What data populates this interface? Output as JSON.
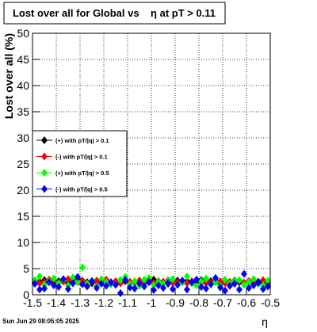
{
  "chart_data": {
    "type": "scatter",
    "title": "Lost over all for Global vs    η at pT > 0.11",
    "x_label": "η",
    "y_label": "Lost over all (%)",
    "timestamp": "Sun Jun 29 08:05:05 2025",
    "xlim": [
      -1.5,
      -0.5
    ],
    "xticks": [
      -1.5,
      -1.4,
      -1.3,
      -1.2,
      -1.1,
      -1,
      -0.9,
      -0.8,
      -0.7,
      -0.6,
      -0.5
    ],
    "ylim": [
      0,
      50
    ],
    "yticks": [
      0,
      5,
      10,
      15,
      20,
      25,
      30,
      35,
      40,
      45,
      50
    ],
    "grid": true,
    "legend_position": "left",
    "x": [
      -1.49,
      -1.47,
      -1.45,
      -1.43,
      -1.41,
      -1.39,
      -1.37,
      -1.35,
      -1.33,
      -1.31,
      -1.29,
      -1.27,
      -1.25,
      -1.23,
      -1.21,
      -1.19,
      -1.17,
      -1.15,
      -1.13,
      -1.11,
      -1.09,
      -1.07,
      -1.05,
      -1.03,
      -1.01,
      -0.99,
      -0.97,
      -0.95,
      -0.93,
      -0.91,
      -0.89,
      -0.87,
      -0.85,
      -0.83,
      -0.81,
      -0.79,
      -0.77,
      -0.75,
      -0.73,
      -0.71,
      -0.69,
      -0.67,
      -0.65,
      -0.63,
      -0.61,
      -0.59,
      -0.57,
      -0.55,
      -0.53,
      -0.51
    ],
    "series": [
      {
        "name": "(+) with pT/|q| > 0.1",
        "color": "#000000",
        "values": [
          2.3,
          2.5,
          2.8,
          2.4,
          2.1,
          2.6,
          2.9,
          2.2,
          2.5,
          3.1,
          2.7,
          2.4,
          2.2,
          2.6,
          2.3,
          2.5,
          2.1,
          2.4,
          2.8,
          2.6,
          2.3,
          2.5,
          2.7,
          2.2,
          2.4,
          2.9,
          2.6,
          2.3,
          2.1,
          2.5,
          2.7,
          2.4,
          2.6,
          2.2,
          2.5,
          2.8,
          2.3,
          2.6,
          2.4,
          2.1,
          2.5,
          2.2,
          2.7,
          2.4,
          2.3,
          2.6,
          2.2,
          2.5,
          2.4,
          2.3
        ]
      },
      {
        "name": "(-) with pT/|q| > 0.1",
        "color": "#ff0000",
        "values": [
          2.6,
          2.2,
          2.4,
          2.9,
          2.7,
          2.3,
          2.5,
          3.0,
          2.8,
          2.4,
          2.6,
          2.2,
          2.5,
          2.7,
          2.3,
          2.9,
          2.4,
          2.6,
          2.2,
          2.8,
          2.5,
          2.3,
          2.7,
          2.4,
          2.9,
          2.2,
          2.6,
          2.5,
          2.8,
          2.3,
          2.4,
          2.7,
          2.2,
          2.6,
          2.9,
          2.4,
          2.5,
          2.3,
          2.8,
          2.6,
          2.2,
          2.5,
          2.4,
          2.7,
          2.3,
          2.6,
          2.5,
          2.2,
          2.8,
          2.4
        ]
      },
      {
        "name": "(+) with pT/|q| > 0.5",
        "color": "#00ff00",
        "values": [
          2.8,
          3.5,
          1.9,
          2.6,
          3.1,
          2.2,
          2.9,
          1.8,
          3.3,
          2.5,
          5.2,
          2.1,
          2.7,
          1.6,
          3.0,
          2.4,
          2.2,
          1.9,
          2.8,
          3.4,
          2.0,
          2.6,
          1.7,
          2.9,
          3.2,
          1.8,
          2.5,
          2.1,
          2.7,
          3.0,
          1.9,
          2.4,
          3.5,
          2.2,
          1.8,
          2.6,
          3.1,
          2.0,
          2.4,
          1.7,
          2.9,
          2.2,
          2.6,
          2.8,
          1.9,
          2.4,
          3.0,
          2.1,
          1.8,
          2.7
        ]
      },
      {
        "name": "(-) with pT/|q| > 0.5",
        "color": "#0000ff",
        "values": [
          2.1,
          1.0,
          1.2,
          2.4,
          1.8,
          1.5,
          3.0,
          1.1,
          2.2,
          3.4,
          2.0,
          1.6,
          2.6,
          1.3,
          2.1,
          1.7,
          2.4,
          1.9,
          0.3,
          2.8,
          1.4,
          1.2,
          2.2,
          1.6,
          2.5,
          0.9,
          1.8,
          1.3,
          2.3,
          1.1,
          1.9,
          2.7,
          1.0,
          2.4,
          2.9,
          1.5,
          1.2,
          2.0,
          3.2,
          1.4,
          0.8,
          1.7,
          2.1,
          1.0,
          4.0,
          1.3,
          1.8,
          2.3,
          1.1,
          1.6
        ]
      }
    ]
  }
}
